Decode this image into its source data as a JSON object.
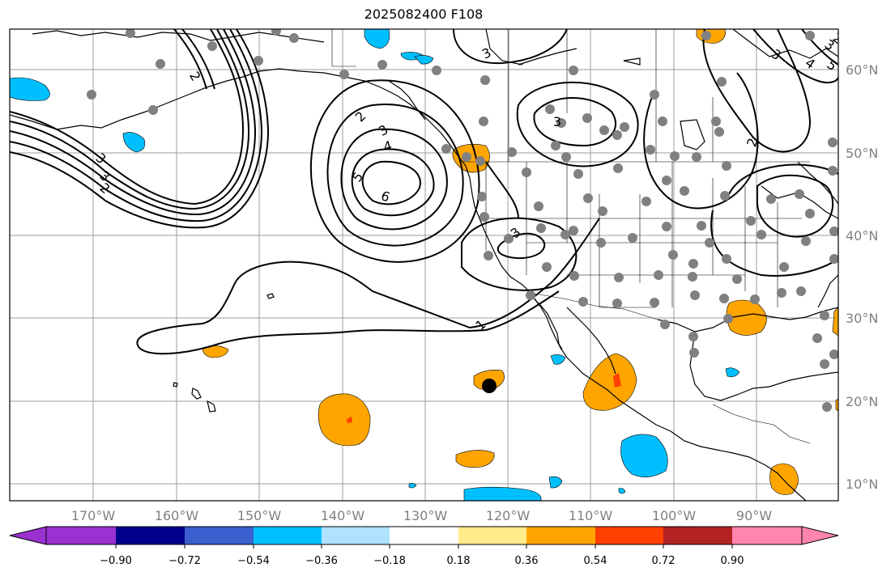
{
  "title": "2025082400 F108",
  "longitude_labels": [
    "170°W",
    "160°W",
    "150°W",
    "140°W",
    "130°W",
    "120°W",
    "110°W",
    "100°W",
    "90°W"
  ],
  "latitude_labels": [
    "60°N",
    "50°N",
    "40°N",
    "30°N",
    "20°N",
    "10°N"
  ],
  "contour_labels": [
    "2",
    "3",
    "4",
    "5",
    "6",
    "3",
    "2",
    "3",
    "1",
    "3",
    "3",
    "4",
    "5",
    "3",
    "2",
    "3",
    "2",
    "3",
    "2"
  ],
  "colorbar": {
    "ticks": [
      "−0.90",
      "−0.72",
      "−0.54",
      "−0.36",
      "−0.18",
      "0.18",
      "0.36",
      "0.54",
      "0.72",
      "0.90"
    ],
    "colors": [
      "#9b30d0",
      "#00008b",
      "#3b5fcd",
      "#00bfff",
      "#afe2ff",
      "#ffffff",
      "#ffeb8a",
      "#ffa500",
      "#ff4000",
      "#b22222",
      "#ff85b0"
    ]
  },
  "colors": {
    "positive_fill": "#ffa500",
    "negative_fill": "#00bfff",
    "station_dot": "#808080",
    "storm_marker": "#000000"
  }
}
